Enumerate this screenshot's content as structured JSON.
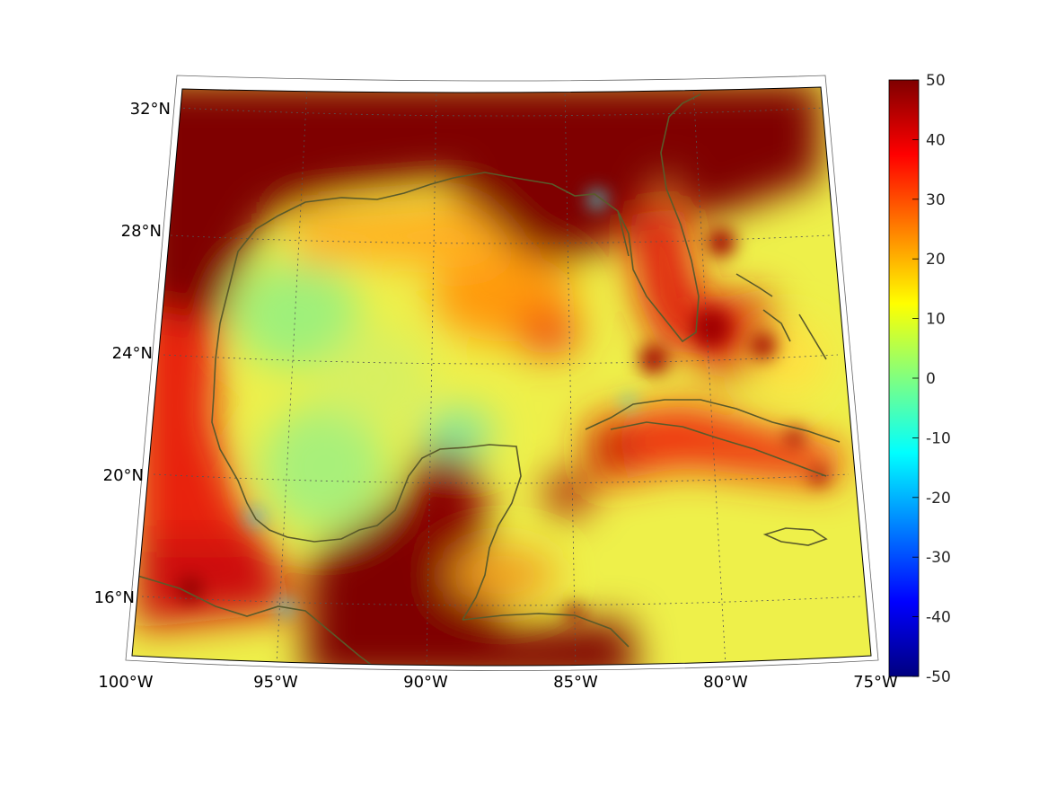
{
  "map": {
    "type": "heatmap",
    "projection": "lambert-conformal-conic",
    "region": "Gulf of Mexico and Caribbean",
    "lon_range": [
      -100,
      -75
    ],
    "lat_range": [
      14,
      33
    ],
    "grid": true,
    "coastline_color": "#5a5a2a",
    "colormap": "jet",
    "lon_ticks": [
      {
        "value": -100,
        "label": "100°W"
      },
      {
        "value": -95,
        "label": "95°W"
      },
      {
        "value": -90,
        "label": "90°W"
      },
      {
        "value": -85,
        "label": "85°W"
      },
      {
        "value": -80,
        "label": "80°W"
      },
      {
        "value": -75,
        "label": "75°W"
      }
    ],
    "lat_ticks": [
      {
        "value": 16,
        "label": "16°N"
      },
      {
        "value": 20,
        "label": "20°N"
      },
      {
        "value": 24,
        "label": "24°N"
      },
      {
        "value": 28,
        "label": "28°N"
      },
      {
        "value": 32,
        "label": "32°N"
      }
    ]
  },
  "colorbar": {
    "range": [
      -50,
      50
    ],
    "ticks": [
      {
        "value": 50,
        "label": "50"
      },
      {
        "value": 40,
        "label": "40"
      },
      {
        "value": 30,
        "label": "30"
      },
      {
        "value": 20,
        "label": "20"
      },
      {
        "value": 10,
        "label": "10"
      },
      {
        "value": 0,
        "label": "0"
      },
      {
        "value": -10,
        "label": "-10"
      },
      {
        "value": -20,
        "label": "-20"
      },
      {
        "value": -30,
        "label": "-30"
      },
      {
        "value": -40,
        "label": "-40"
      },
      {
        "value": -50,
        "label": "-50"
      }
    ]
  }
}
